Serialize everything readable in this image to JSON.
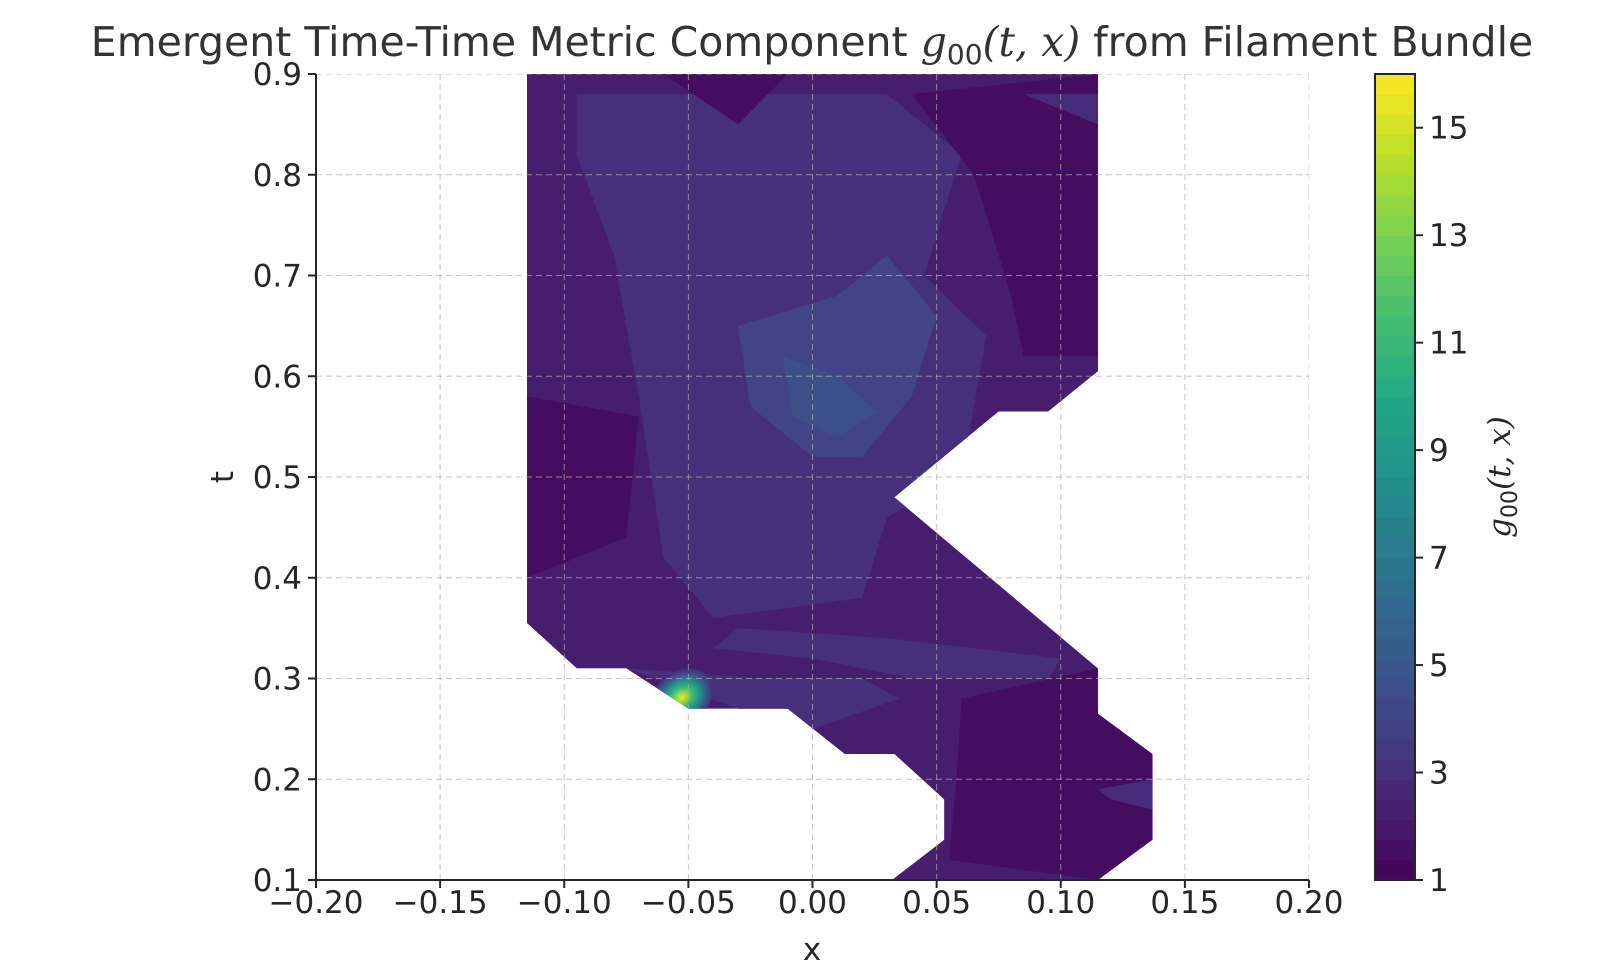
{
  "chart_data": {
    "type": "heatmap",
    "subtype": "filled-contour",
    "colormap": "viridis",
    "title": {
      "text": "Emergent Time-Time Metric Component ",
      "math_symbol": "g",
      "math_subscript": "00",
      "math_args": "(t, x)",
      "suffix": " from Filament Bundle"
    },
    "xlabel": "x",
    "ylabel": "t",
    "xlim": [
      -0.2,
      0.2
    ],
    "ylim": [
      0.1,
      0.9
    ],
    "xticks": [
      -0.2,
      -0.15,
      -0.1,
      -0.05,
      0.0,
      0.05,
      0.1,
      0.15,
      0.2
    ],
    "xtick_labels": [
      "−0.20",
      "−0.15",
      "−0.10",
      "−0.05",
      "0.00",
      "0.05",
      "0.10",
      "0.15",
      "0.20"
    ],
    "yticks": [
      0.1,
      0.2,
      0.3,
      0.4,
      0.5,
      0.6,
      0.7,
      0.8,
      0.9
    ],
    "ytick_labels": [
      "0.1",
      "0.2",
      "0.3",
      "0.4",
      "0.5",
      "0.6",
      "0.7",
      "0.8",
      "0.9"
    ],
    "grid": true,
    "colorbar": {
      "label_symbol": "g",
      "label_subscript": "00",
      "label_args": "(t, x)",
      "range": [
        1,
        16
      ],
      "ticks": [
        1,
        3,
        5,
        7,
        9,
        11,
        13,
        15
      ],
      "tick_labels": [
        "1",
        "3",
        "5",
        "7",
        "9",
        "11",
        "13",
        "15"
      ]
    },
    "domain_outline": [
      [
        -0.115,
        0.9
      ],
      [
        0.115,
        0.9
      ],
      [
        0.115,
        0.605
      ],
      [
        0.095,
        0.565
      ],
      [
        0.075,
        0.565
      ],
      [
        0.033,
        0.48
      ],
      [
        0.115,
        0.31
      ],
      [
        0.115,
        0.265
      ],
      [
        0.137,
        0.225
      ],
      [
        0.137,
        0.14
      ],
      [
        0.115,
        0.1
      ],
      [
        0.032,
        0.1
      ],
      [
        0.053,
        0.14
      ],
      [
        0.053,
        0.18
      ],
      [
        0.033,
        0.225
      ],
      [
        0.013,
        0.225
      ],
      [
        -0.01,
        0.27
      ],
      [
        -0.05,
        0.27
      ],
      [
        -0.075,
        0.31
      ],
      [
        -0.095,
        0.31
      ],
      [
        -0.115,
        0.355
      ]
    ],
    "regions": [
      {
        "value": 3.0,
        "poly": [
          [
            -0.095,
            0.88
          ],
          [
            0.03,
            0.88
          ],
          [
            0.06,
            0.82
          ],
          [
            0.045,
            0.7
          ],
          [
            0.07,
            0.64
          ],
          [
            0.06,
            0.5
          ],
          [
            0.03,
            0.46
          ],
          [
            0.02,
            0.38
          ],
          [
            -0.04,
            0.36
          ],
          [
            -0.06,
            0.42
          ],
          [
            -0.07,
            0.58
          ],
          [
            -0.08,
            0.72
          ],
          [
            -0.095,
            0.82
          ]
        ]
      },
      {
        "value": 4.0,
        "poly": [
          [
            -0.03,
            0.65
          ],
          [
            0.01,
            0.68
          ],
          [
            0.03,
            0.72
          ],
          [
            0.05,
            0.66
          ],
          [
            0.04,
            0.58
          ],
          [
            0.02,
            0.52
          ],
          [
            0.0,
            0.52
          ],
          [
            -0.025,
            0.57
          ]
        ]
      },
      {
        "value": 4.6,
        "poly": [
          [
            -0.012,
            0.62
          ],
          [
            0.01,
            0.6
          ],
          [
            0.026,
            0.565
          ],
          [
            0.01,
            0.54
          ],
          [
            -0.008,
            0.56
          ]
        ]
      },
      {
        "value": 3.0,
        "poly": [
          [
            -0.03,
            0.35
          ],
          [
            0.03,
            0.34
          ],
          [
            0.1,
            0.32
          ],
          [
            0.095,
            0.3
          ],
          [
            0.04,
            0.3
          ],
          [
            0.0,
            0.32
          ],
          [
            -0.04,
            0.33
          ]
        ]
      },
      {
        "value": 3.0,
        "poly": [
          [
            -0.075,
            0.31
          ],
          [
            -0.02,
            0.3
          ],
          [
            0.02,
            0.3
          ],
          [
            0.035,
            0.28
          ],
          [
            0.0,
            0.25
          ],
          [
            -0.03,
            0.27
          ]
        ]
      },
      {
        "value": 1.5,
        "poly": [
          [
            0.04,
            0.88
          ],
          [
            0.115,
            0.9
          ],
          [
            0.115,
            0.62
          ],
          [
            0.085,
            0.62
          ],
          [
            0.08,
            0.68
          ],
          [
            0.065,
            0.8
          ]
        ]
      },
      {
        "value": 1.5,
        "poly": [
          [
            -0.115,
            0.58
          ],
          [
            -0.07,
            0.56
          ],
          [
            -0.075,
            0.44
          ],
          [
            -0.115,
            0.4
          ]
        ]
      },
      {
        "value": 1.5,
        "poly": [
          [
            0.06,
            0.28
          ],
          [
            0.115,
            0.31
          ],
          [
            0.137,
            0.225
          ],
          [
            0.137,
            0.14
          ],
          [
            0.115,
            0.1
          ],
          [
            0.055,
            0.12
          ],
          [
            0.058,
            0.2
          ]
        ]
      },
      {
        "value": 1.5,
        "poly": [
          [
            -0.06,
            0.9
          ],
          [
            -0.03,
            0.85
          ],
          [
            -0.01,
            0.9
          ]
        ]
      },
      {
        "value": 2.8,
        "poly": [
          [
            0.115,
            0.85
          ],
          [
            0.085,
            0.88
          ],
          [
            0.115,
            0.88
          ]
        ]
      },
      {
        "value": 2.8,
        "poly": [
          [
            0.115,
            0.19
          ],
          [
            0.137,
            0.2
          ],
          [
            0.137,
            0.17
          ],
          [
            0.12,
            0.18
          ]
        ]
      }
    ],
    "peaks": [
      {
        "x": -0.051,
        "t": 0.272,
        "value": 15.5,
        "color_stops": [
          [
            "#f5e61f",
            0.0
          ],
          [
            "#8fd744",
            0.18
          ],
          [
            "#35b779",
            0.36
          ],
          [
            "#21908d",
            0.58
          ],
          [
            "#3b528b",
            0.8
          ],
          [
            "#472c7a",
            1.0
          ]
        ]
      }
    ],
    "base_value": 2.2
  }
}
